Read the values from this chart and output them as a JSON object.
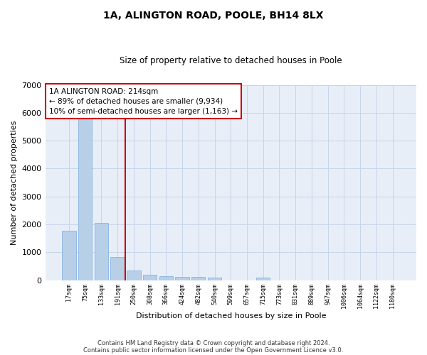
{
  "title": "1A, ALINGTON ROAD, POOLE, BH14 8LX",
  "subtitle": "Size of property relative to detached houses in Poole",
  "xlabel": "Distribution of detached houses by size in Poole",
  "ylabel": "Number of detached properties",
  "bar_color": "#b8cfe8",
  "bar_edge_color": "#7aabe0",
  "grid_color": "#c8d4e8",
  "background_color": "#e8eef8",
  "vline_color": "#cc0000",
  "annotation_box_text": "1A ALINGTON ROAD: 214sqm\n← 89% of detached houses are smaller (9,934)\n10% of semi-detached houses are larger (1,163) →",
  "annotation_box_color": "#cc0000",
  "categories": [
    "17sqm",
    "75sqm",
    "133sqm",
    "191sqm",
    "250sqm",
    "308sqm",
    "366sqm",
    "424sqm",
    "482sqm",
    "540sqm",
    "599sqm",
    "657sqm",
    "715sqm",
    "773sqm",
    "831sqm",
    "889sqm",
    "947sqm",
    "1006sqm",
    "1064sqm",
    "1122sqm",
    "1180sqm"
  ],
  "values": [
    1780,
    5780,
    2060,
    830,
    340,
    200,
    130,
    120,
    110,
    80,
    0,
    0,
    80,
    0,
    0,
    0,
    0,
    0,
    0,
    0,
    0
  ],
  "ylim": [
    0,
    7000
  ],
  "yticks": [
    0,
    1000,
    2000,
    3000,
    4000,
    5000,
    6000,
    7000
  ],
  "vline_x_index": 3.5,
  "footer_line1": "Contains HM Land Registry data © Crown copyright and database right 2024.",
  "footer_line2": "Contains public sector information licensed under the Open Government Licence v3.0."
}
